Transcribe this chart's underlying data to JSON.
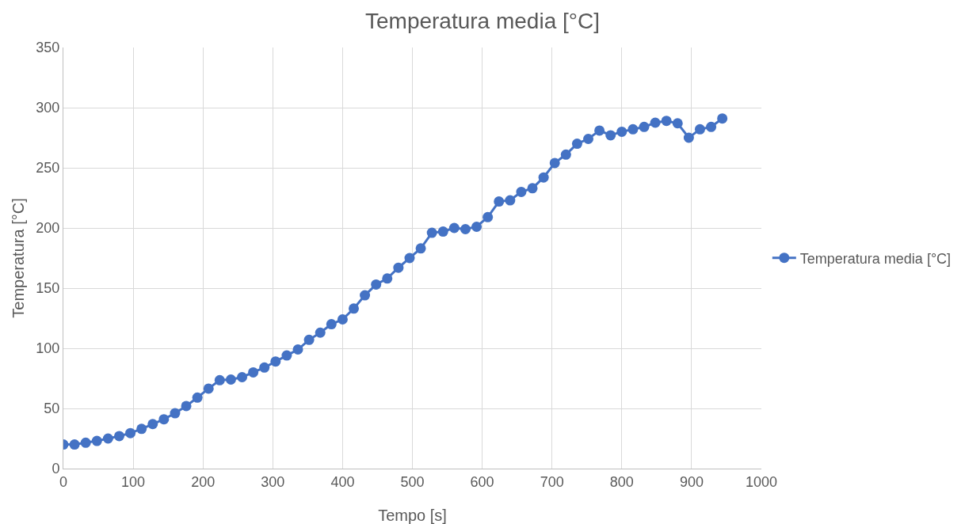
{
  "chart_data": {
    "type": "line",
    "title": "Temperatura media [°C]",
    "xlabel": "Tempo [s]",
    "ylabel": "Temperatura [°C]",
    "x": [
      0,
      16,
      32,
      48,
      64,
      80,
      96,
      112,
      128,
      144,
      160,
      176,
      192,
      208,
      224,
      240,
      256,
      272,
      288,
      304,
      320,
      336,
      352,
      368,
      384,
      400,
      416,
      432,
      448,
      464,
      480,
      496,
      512,
      528,
      544,
      560,
      576,
      592,
      608,
      624,
      640,
      656,
      672,
      688,
      704,
      720,
      736,
      752,
      768,
      784,
      800,
      816,
      832,
      848,
      864,
      880,
      896,
      912,
      928,
      944
    ],
    "series": [
      {
        "name": "Temperatura media [°C]",
        "color": "#4472c4",
        "values": [
          20,
          20,
          21.5,
          23,
          25,
          27,
          29.5,
          33,
          37,
          41,
          46,
          52,
          59,
          66.5,
          73.5,
          74,
          76,
          80,
          84,
          89,
          94,
          99,
          107,
          113,
          120,
          124,
          133,
          144,
          153,
          158,
          167,
          175,
          183,
          196,
          197,
          200,
          199,
          201,
          209,
          222,
          223,
          230,
          233,
          242,
          254,
          261,
          270,
          274,
          281,
          277,
          280,
          282,
          284,
          287.5,
          289,
          287,
          275,
          282,
          284,
          291
        ]
      }
    ],
    "xlim": [
      0,
      1000
    ],
    "xticks": [
      0,
      100,
      200,
      300,
      400,
      500,
      600,
      700,
      800,
      900,
      1000
    ],
    "ylim": [
      0,
      350
    ],
    "yticks": [
      0,
      50,
      100,
      150,
      200,
      250,
      300,
      350
    ],
    "grid": true,
    "legend": "right",
    "marker": "circle",
    "line_style": "solid"
  }
}
